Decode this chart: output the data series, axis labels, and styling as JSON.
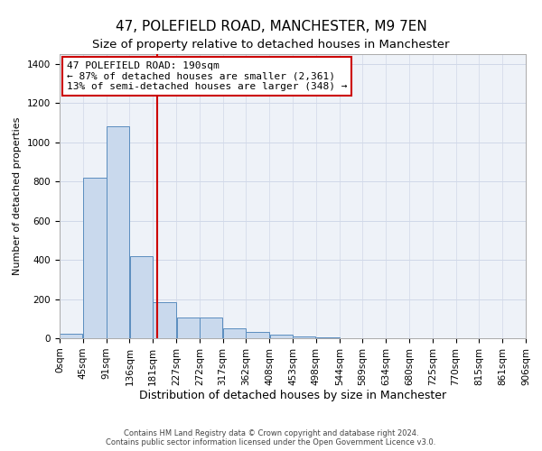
{
  "title": "47, POLEFIELD ROAD, MANCHESTER, M9 7EN",
  "subtitle": "Size of property relative to detached houses in Manchester",
  "xlabel": "Distribution of detached houses by size in Manchester",
  "ylabel": "Number of detached properties",
  "bar_edges": [
    0,
    45,
    91,
    136,
    181,
    227,
    272,
    317,
    362,
    408,
    453,
    498,
    544,
    589,
    634,
    680,
    725,
    770,
    815,
    861,
    906
  ],
  "bar_heights": [
    25,
    820,
    1080,
    420,
    185,
    105,
    105,
    50,
    30,
    20,
    10,
    5,
    2,
    0,
    0,
    0,
    0,
    0,
    0,
    0
  ],
  "bar_color": "#c9d9ed",
  "bar_edge_color": "#5a8dbf",
  "grid_color": "#d0d8e8",
  "background_color": "#eef2f8",
  "vline_x": 190,
  "vline_color": "#cc0000",
  "annotation_line1": "47 POLEFIELD ROAD: 190sqm",
  "annotation_line2": "← 87% of detached houses are smaller (2,361)",
  "annotation_line3": "13% of semi-detached houses are larger (348) →",
  "annotation_box_color": "#ffffff",
  "annotation_box_edge_color": "#cc0000",
  "ylim": [
    0,
    1450
  ],
  "yticks": [
    0,
    200,
    400,
    600,
    800,
    1000,
    1200,
    1400
  ],
  "footnote": "Contains HM Land Registry data © Crown copyright and database right 2024.\nContains public sector information licensed under the Open Government Licence v3.0.",
  "title_fontsize": 11,
  "subtitle_fontsize": 9.5,
  "xlabel_fontsize": 9,
  "ylabel_fontsize": 8,
  "tick_fontsize": 7.5,
  "annotation_fontsize": 8,
  "footnote_fontsize": 6
}
